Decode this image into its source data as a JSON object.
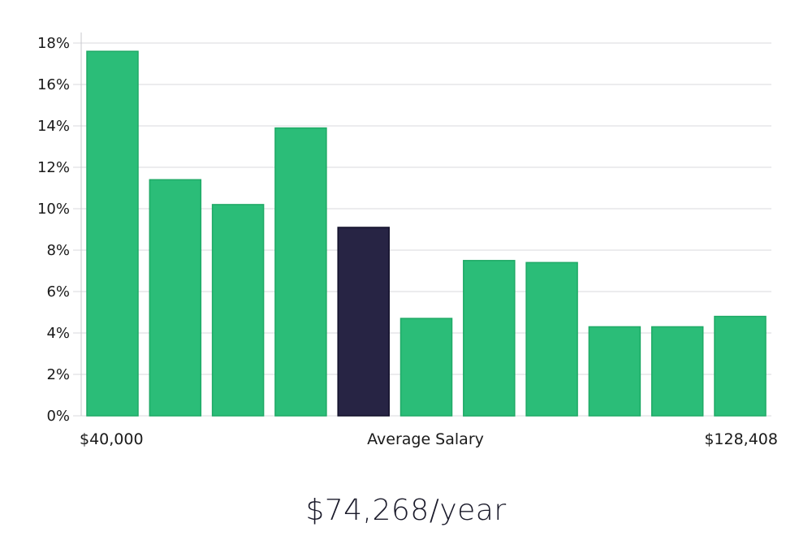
{
  "colors": {
    "bar": "#2bbd78",
    "bar_stroke": "#1faa66",
    "highlight": "#272444",
    "highlight_stroke": "#12102a"
  },
  "chart_data": {
    "type": "bar",
    "categories": [
      "",
      "",
      "",
      "",
      "",
      "",
      "",
      "",
      "",
      "",
      ""
    ],
    "values": [
      17.6,
      11.4,
      10.2,
      13.9,
      9.1,
      4.7,
      7.5,
      7.4,
      4.3,
      4.3,
      4.8
    ],
    "highlight_index": 4,
    "ylim": [
      0,
      18
    ],
    "yticks": [
      0,
      2,
      4,
      6,
      8,
      10,
      12,
      14,
      16,
      18
    ],
    "ytick_labels": [
      "0%",
      "2%",
      "4%",
      "6%",
      "8%",
      "10%",
      "12%",
      "14%",
      "16%",
      "18%"
    ],
    "x_labels": {
      "left": "$40,000",
      "center": "Average Salary",
      "right": "$128,408"
    },
    "grid": true,
    "legend": "none"
  },
  "caption": "$74,268/year"
}
